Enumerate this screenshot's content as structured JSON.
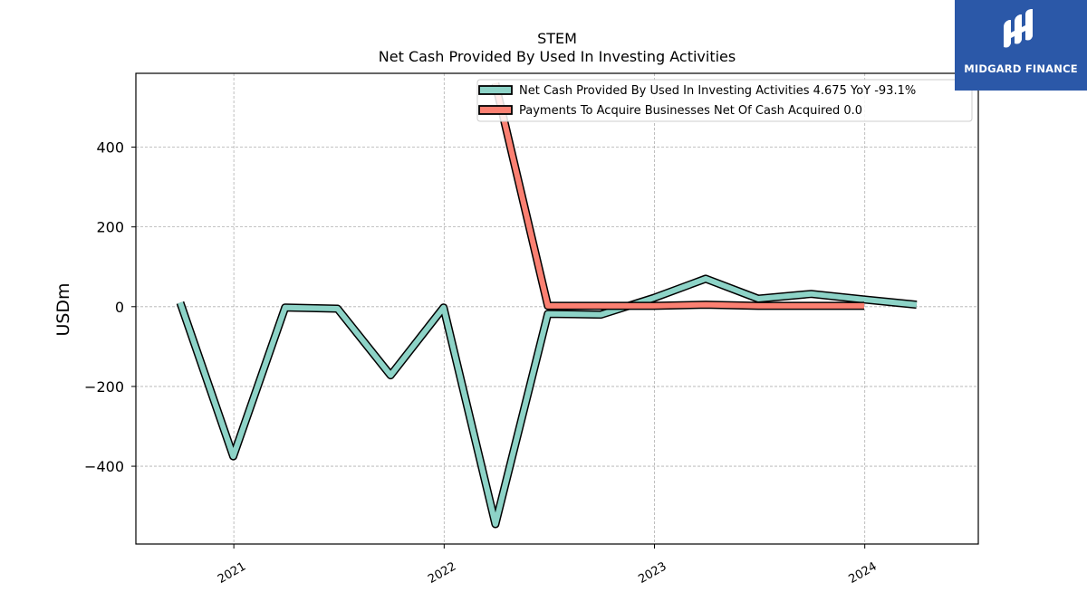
{
  "chart_data": {
    "type": "line",
    "title": "STEM",
    "subtitle": "Net Cash Provided By Used In Investing Activities",
    "ylabel": "USDm",
    "xlabel": "",
    "ylim": [
      -595,
      585
    ],
    "xlim": [
      "2020-07-15",
      "2024-07-16"
    ],
    "x_ticks": [
      {
        "date": "2021-01-01",
        "label": "2021"
      },
      {
        "date": "2022-01-01",
        "label": "2022"
      },
      {
        "date": "2023-01-01",
        "label": "2023"
      },
      {
        "date": "2024-01-01",
        "label": "2024"
      }
    ],
    "y_ticks": [
      400,
      200,
      0,
      -200,
      -400
    ],
    "grid": true,
    "legend_position": "top-right",
    "series": [
      {
        "name": "Net Cash Provided By Used In Investing Activities",
        "legend_suffix": "4.675 YoY -93.1%",
        "color": "#8dd3c7",
        "points": [
          [
            "2020-09-30",
            10
          ],
          [
            "2020-12-31",
            -375
          ],
          [
            "2021-03-31",
            -2
          ],
          [
            "2021-06-30",
            -5
          ],
          [
            "2021-09-30",
            -172
          ],
          [
            "2021-12-31",
            -2
          ],
          [
            "2022-03-31",
            -545
          ],
          [
            "2022-06-30",
            -18
          ],
          [
            "2022-09-30",
            -20
          ],
          [
            "2022-12-31",
            22
          ],
          [
            "2023-03-31",
            70
          ],
          [
            "2023-06-30",
            20
          ],
          [
            "2023-09-30",
            32
          ],
          [
            "2023-12-31",
            18
          ],
          [
            "2024-03-31",
            5
          ]
        ]
      },
      {
        "name": "Payments To Acquire Businesses Net Of Cash Acquired",
        "legend_suffix": "0.0",
        "color": "#fb8072",
        "points": [
          [
            "2022-03-31",
            560
          ],
          [
            "2022-06-30",
            2
          ],
          [
            "2022-09-30",
            2
          ],
          [
            "2022-12-31",
            2
          ],
          [
            "2023-03-31",
            5
          ],
          [
            "2023-06-30",
            2
          ],
          [
            "2023-09-30",
            2
          ],
          [
            "2023-12-31",
            2
          ]
        ]
      }
    ]
  },
  "logo": {
    "text": "MIDGARD FINANCE",
    "color": "#2b58a8"
  }
}
